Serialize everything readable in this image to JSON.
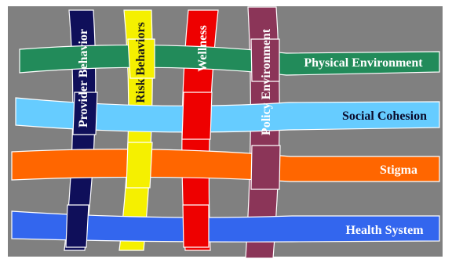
{
  "diagram": {
    "background_color": "#808080",
    "vertical_ribbons": [
      {
        "label": "Provider Behavior",
        "color": "#0f0f5a",
        "text_color": "#ffffff"
      },
      {
        "label": "Risk Behaviors",
        "color": "#f5f000",
        "text_color": "#1a1a1a"
      },
      {
        "label": "Wellness",
        "color": "#ee0000",
        "text_color": "#ffffff"
      },
      {
        "label": "Policy Environment",
        "color": "#8b3558",
        "text_color": "#ffffff"
      }
    ],
    "horizontal_ribbons": [
      {
        "label": "Physical Environment",
        "color": "#228b5a",
        "text_color": "#ffffff"
      },
      {
        "label": "Social Cohesion",
        "color": "#66ccff",
        "text_color": "#0a0a2a"
      },
      {
        "label": "Stigma",
        "color": "#ff6600",
        "text_color": "#ffffff"
      },
      {
        "label": "Health System",
        "color": "#3366ee",
        "text_color": "#ffffff"
      }
    ]
  }
}
